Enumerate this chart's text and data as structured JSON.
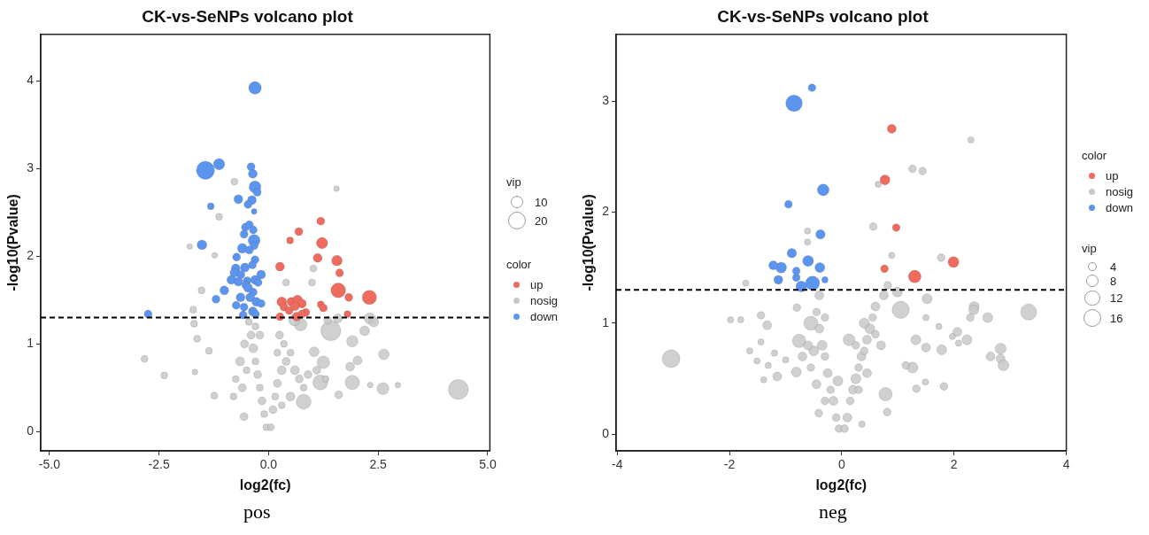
{
  "chart_data": [
    {
      "type": "bubble",
      "title": "CK-vs-SeNPs volcano plot",
      "xlabel": "log2(fc)",
      "ylabel": "-log10(Pvalue)",
      "legend_title": "color",
      "annotations": [
        "vip",
        "pos"
      ],
      "xlim": [
        -5.2,
        5.05
      ],
      "ylim": [
        -0.22,
        4.53
      ],
      "xticks": [
        {
          "value": -5,
          "label": "-5.0"
        },
        {
          "value": -2.5,
          "label": "-2.5"
        },
        {
          "value": 0,
          "label": "0.0"
        },
        {
          "value": 2.5,
          "label": "2.5"
        },
        {
          "value": 5,
          "label": "5.0"
        }
      ],
      "yticks": [
        0,
        1,
        2,
        3,
        4
      ],
      "size_legend": [
        10,
        20
      ],
      "legend": "right",
      "grid": false,
      "marker": "circle",
      "ref_lines": [
        {
          "axis": "y",
          "value": 1.3,
          "label": null,
          "color": "#000000",
          "line_style": "dashed"
        }
      ],
      "series": [
        {
          "name": "up",
          "color": "#ef6b5e",
          "x": [
            1.19,
            0.69,
            0.49,
            1.22,
            1.12,
            0.26,
            1.56,
            1.62,
            1.59,
            2.3,
            1.83,
            0.3,
            0.52,
            0.66,
            0.76,
            0.35,
            0.47,
            0.6,
            1.19,
            1.25,
            0.85,
            0.26,
            0.64,
            0.76,
            1.8
          ],
          "values": [
            2.4,
            2.28,
            2.18,
            2.15,
            1.98,
            1.88,
            1.95,
            1.81,
            1.61,
            1.53,
            1.53,
            1.48,
            1.48,
            1.5,
            1.46,
            1.42,
            1.38,
            1.43,
            1.45,
            1.41,
            1.36,
            1.31,
            1.31,
            1.34,
            1.34
          ],
          "sizes": [
            4,
            4,
            3,
            8,
            5,
            5,
            7,
            4,
            14,
            13,
            4,
            6,
            5,
            6,
            5,
            4,
            4,
            5,
            3,
            4,
            4,
            4,
            5,
            4,
            3
          ]
        },
        {
          "name": "nosig",
          "color": "#c8c8c8",
          "x": [
            -2.83,
            -2.38,
            -1.68,
            -1.8,
            -0.78,
            -1.13,
            -1.23,
            -1.53,
            -1.72,
            -1.7,
            -1.63,
            -1.36,
            -1.24,
            1.55,
            1.02,
            0.4,
            0.99,
            1.42,
            2.31,
            2.4,
            2.19,
            1.91,
            2.63,
            2.03,
            1.86,
            1.91,
            2.61,
            2.95,
            2.32,
            4.33,
            0.8,
            1.6,
            1.18,
            1.25,
            1.04,
            0.73,
            0.59,
            1.58,
            1.35,
            -0.56,
            -0.05,
            -0.1,
            -0.15,
            -0.2,
            -0.25,
            -0.3,
            -0.35,
            -0.4,
            -0.45,
            -0.55,
            -0.65,
            -0.75,
            -0.8,
            -0.6,
            -0.5,
            -0.3,
            -0.2,
            0.05,
            0.1,
            0.15,
            0.2,
            0.3,
            0.4,
            0.5,
            0.6,
            0.7,
            0.8,
            0.9,
            0.35,
            0.25,
            0.5,
            0.3,
            1.1,
            1.3,
            0.2
          ],
          "values": [
            0.83,
            0.64,
            0.68,
            2.11,
            2.85,
            2.45,
            2.01,
            1.61,
            1.39,
            1.23,
            1.06,
            0.92,
            0.41,
            2.77,
            1.86,
            1.7,
            1.7,
            1.15,
            1.29,
            1.25,
            1.15,
            1.03,
            0.88,
            0.81,
            0.74,
            0.56,
            0.49,
            0.53,
            0.53,
            0.48,
            0.34,
            0.42,
            0.56,
            0.79,
            0.91,
            1.22,
            1.27,
            1.29,
            1.27,
            0.17,
            0.05,
            0.2,
            0.35,
            0.5,
            0.65,
            0.8,
            0.95,
            1.1,
            1.25,
            1.0,
            0.8,
            0.6,
            0.4,
            0.5,
            0.7,
            1.2,
            1.1,
            0.05,
            0.25,
            0.4,
            0.55,
            0.7,
            0.8,
            0.9,
            0.7,
            0.6,
            0.5,
            0.65,
            1.0,
            1.1,
            0.4,
            0.3,
            0.7,
            0.6,
            0.9
          ],
          "sizes": [
            3,
            3,
            2,
            2,
            3,
            3,
            2,
            3,
            3,
            3,
            3,
            3,
            3,
            2,
            3,
            3,
            3,
            25,
            8,
            6,
            6,
            8,
            7,
            5,
            5,
            13,
            9,
            2,
            2,
            25,
            14,
            4,
            14,
            10,
            6,
            10,
            8,
            5,
            4,
            4,
            3,
            3,
            4,
            3,
            4,
            3,
            5,
            4,
            3,
            4,
            5,
            3,
            3,
            4,
            3,
            3,
            4,
            3,
            4,
            3,
            4,
            5,
            4,
            3,
            5,
            4,
            3,
            4,
            3,
            4,
            5,
            3,
            4,
            3,
            3
          ]
        },
        {
          "name": "down",
          "color": "#5b95f0",
          "x": [
            -0.31,
            -1.44,
            -1.13,
            -0.4,
            -0.36,
            -0.31,
            -0.26,
            -0.69,
            -0.38,
            -0.47,
            -1.32,
            -0.33,
            -0.53,
            -0.44,
            -0.35,
            -0.33,
            -0.33,
            -0.56,
            -1.52,
            -0.6,
            -0.44,
            -0.73,
            -0.31,
            -0.37,
            -0.75,
            -0.54,
            -0.17,
            -0.78,
            -0.63,
            -0.85,
            -0.69,
            -0.49,
            -0.31,
            -0.24,
            -0.52,
            -0.47,
            -1.01,
            -0.35,
            -0.64,
            -0.42,
            -1.2,
            -0.28,
            -0.17,
            -0.74,
            -0.56,
            -0.36,
            -0.3,
            -0.58,
            -2.75
          ],
          "values": [
            3.92,
            2.98,
            3.05,
            3.02,
            2.94,
            2.79,
            2.73,
            2.65,
            2.64,
            2.59,
            2.57,
            2.51,
            2.33,
            2.36,
            2.3,
            2.18,
            2.12,
            2.25,
            2.13,
            2.09,
            2.07,
            1.99,
            1.96,
            1.9,
            1.86,
            1.87,
            1.79,
            1.81,
            1.79,
            1.73,
            1.71,
            1.72,
            1.73,
            1.7,
            1.67,
            1.64,
            1.61,
            1.59,
            1.53,
            1.53,
            1.51,
            1.48,
            1.46,
            1.44,
            1.42,
            1.37,
            1.34,
            1.33,
            1.34
          ],
          "sizes": [
            10,
            21,
            8,
            4,
            5,
            9,
            4,
            5,
            5,
            4,
            3,
            2,
            4,
            4,
            4,
            9,
            4,
            4,
            6,
            6,
            4,
            4,
            4,
            4,
            5,
            5,
            5,
            5,
            4,
            5,
            5,
            4,
            5,
            4,
            4,
            5,
            5,
            4,
            5,
            5,
            4,
            5,
            4,
            4,
            4,
            5,
            4,
            4,
            4
          ]
        }
      ]
    },
    {
      "type": "bubble",
      "title": "CK-vs-SeNPs volcano plot",
      "xlabel": "log2(fc)",
      "ylabel": "-log10(Pvalue)",
      "legend_title": "color",
      "annotations": [
        "vip",
        "neg"
      ],
      "xlim": [
        -4.02,
        4.0
      ],
      "ylim": [
        -0.15,
        3.6
      ],
      "xticks": [
        -4,
        -2,
        0,
        2,
        4
      ],
      "yticks": [
        0,
        1,
        2,
        3
      ],
      "size_legend": [
        4,
        8,
        12,
        16
      ],
      "legend": "right",
      "grid": false,
      "marker": "circle",
      "ref_lines": [
        {
          "axis": "y",
          "value": 1.3,
          "label": null,
          "color": "#000000",
          "line_style": "dashed"
        }
      ],
      "series": [
        {
          "name": "up",
          "color": "#ef6b5e",
          "x": [
            0.89,
            0.77,
            0.97,
            0.76,
            1.3,
            1.99
          ],
          "values": [
            2.75,
            2.29,
            1.86,
            1.49,
            1.42,
            1.55
          ],
          "sizes": [
            4,
            5,
            3,
            3,
            8,
            6
          ]
        },
        {
          "name": "nosig",
          "color": "#c8c8c8",
          "x": [
            -3.04,
            2.3,
            1.26,
            1.44,
            0.65,
            0.56,
            0.89,
            1.77,
            -0.61,
            -0.61,
            -1.71,
            -1.98,
            -1.8,
            -1.44,
            -1.33,
            -1.44,
            -1.64,
            -1.51,
            -1.31,
            -1.39,
            -1.15,
            -1.2,
            -1.0,
            1.52,
            2.36,
            2.35,
            3.33,
            2.6,
            2.29,
            2.06,
            2.23,
            1.97,
            2.08,
            2.83,
            2.65,
            2.83,
            2.88,
            1.78,
            1.73,
            1.5,
            1.32,
            1.5,
            1.26,
            1.14,
            1.33,
            1.49,
            1.82,
            1.05,
            0.99,
            0.75,
            0.82,
            0.78,
            0.81,
            0.36,
            0.13,
            -0.41,
            -0.55,
            -0.76,
            -0.81,
            -0.8,
            -0.07,
            -0.05,
            -0.1,
            -0.15,
            -0.2,
            -0.25,
            -0.3,
            -0.35,
            -0.4,
            -0.45,
            -0.4,
            -0.5,
            -0.6,
            -0.55,
            -0.45,
            -0.3,
            -0.7,
            -0.3,
            0.05,
            0.1,
            0.15,
            0.2,
            0.25,
            0.3,
            0.35,
            0.4,
            0.45,
            0.5,
            0.55,
            0.6,
            0.3,
            0.45,
            0.4,
            0.6,
            0.7,
            0.25
          ],
          "values": [
            0.68,
            2.65,
            2.39,
            2.37,
            2.25,
            1.87,
            1.61,
            1.59,
            1.83,
            1.73,
            1.36,
            1.03,
            1.03,
            1.07,
            0.98,
            0.83,
            0.75,
            0.66,
            0.62,
            0.49,
            0.52,
            0.73,
            0.67,
            1.22,
            1.15,
            1.12,
            1.1,
            1.05,
            1.05,
            0.92,
            0.85,
            0.88,
            0.82,
            0.77,
            0.7,
            0.68,
            0.62,
            0.76,
            0.97,
            1.05,
            0.85,
            0.78,
            0.6,
            0.62,
            0.41,
            0.47,
            0.43,
            1.12,
            1.28,
            1.25,
            1.34,
            0.36,
            0.2,
            0.09,
            0.85,
            0.19,
            1.0,
            0.84,
            0.56,
            1.14,
            0.48,
            0.05,
            0.15,
            0.3,
            0.4,
            0.55,
            0.7,
            0.8,
            0.95,
            1.1,
            1.25,
            0.75,
            0.8,
            0.6,
            0.45,
            0.3,
            0.7,
            1.05,
            0.05,
            0.15,
            0.3,
            0.4,
            0.5,
            0.6,
            0.7,
            0.75,
            0.85,
            0.95,
            1.05,
            1.15,
            0.4,
            0.55,
            1.0,
            0.9,
            0.8,
            0.8
          ],
          "sizes": [
            16,
            2,
            3,
            3,
            2,
            3,
            2,
            3,
            2,
            2,
            2,
            2,
            2,
            3,
            4,
            2,
            2,
            2,
            2,
            2,
            4,
            2,
            2,
            5,
            5,
            5,
            13,
            5,
            3,
            4,
            5,
            2,
            2,
            6,
            4,
            4,
            6,
            5,
            2,
            2,
            5,
            4,
            6,
            3,
            3,
            2,
            3,
            15,
            5,
            4,
            3,
            9,
            3,
            2,
            7,
            3,
            10,
            9,
            5,
            3,
            5,
            3,
            3,
            4,
            3,
            4,
            3,
            5,
            4,
            3,
            4,
            5,
            4,
            3,
            4,
            3,
            4,
            3,
            3,
            4,
            3,
            4,
            5,
            3,
            4,
            3,
            4,
            5,
            3,
            4,
            3,
            4,
            5,
            3,
            4,
            3
          ]
        },
        {
          "name": "down",
          "color": "#5b95f0",
          "x": [
            -0.53,
            -0.85,
            -0.33,
            -0.95,
            -0.38,
            -0.89,
            -0.6,
            -1.08,
            -1.22,
            -0.39,
            -0.81,
            -0.81,
            -1.13,
            -0.3,
            -0.72,
            -0.52
          ],
          "values": [
            3.12,
            2.98,
            2.2,
            2.07,
            1.8,
            1.63,
            1.56,
            1.5,
            1.52,
            1.5,
            1.47,
            1.41,
            1.39,
            1.39,
            1.33,
            1.36
          ],
          "sizes": [
            3,
            14,
            7,
            3,
            4.5,
            4.5,
            6,
            6,
            4,
            5,
            3,
            3,
            4,
            2,
            6,
            10
          ]
        }
      ]
    }
  ]
}
